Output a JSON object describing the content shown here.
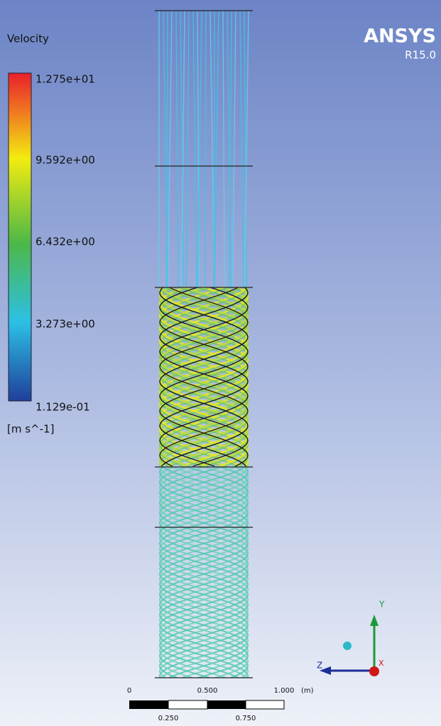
{
  "legend": {
    "title": "Velocity",
    "labels": [
      "1.275e+01",
      "9.592e+00",
      "6.432e+00",
      "3.273e+00",
      "1.129e-01"
    ],
    "units": "[m s^-1]"
  },
  "logo": {
    "name": "ANSYS",
    "version": "R15.0"
  },
  "scale_bar": {
    "top_labels": [
      "0",
      "0.500",
      "1.000",
      "(m)"
    ],
    "bottom_labels": [
      "0.250",
      "0.750"
    ]
  },
  "triad": {
    "y": "Y",
    "z": "Z",
    "x": "X"
  }
}
